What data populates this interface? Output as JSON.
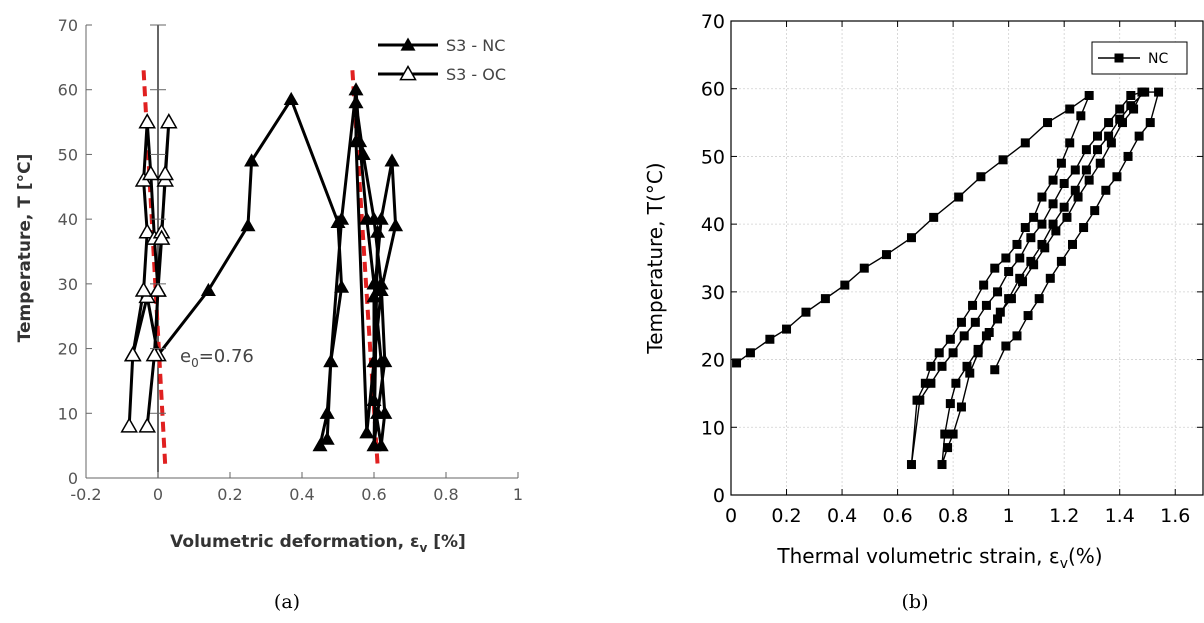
{
  "chart_data": [
    {
      "type": "line",
      "panel_caption": "(a)",
      "xlabel": "Volumetric deformation, ε",
      "xlabel_sub": "v",
      "xlabel_unit": " [%]",
      "ylabel": "Temperature, T [°C]",
      "xlim": [
        -0.2,
        1.0
      ],
      "ylim": [
        0,
        70
      ],
      "xticks": [
        -0.2,
        0,
        0.2,
        0.4,
        0.6,
        0.8,
        1
      ],
      "xtick_labels": [
        "-0.2",
        "0",
        "0.2",
        "0.4",
        "0.6",
        "0.8",
        "1"
      ],
      "yticks": [
        0,
        10,
        20,
        30,
        40,
        50,
        60,
        70
      ],
      "ytick_labels": [
        "0",
        "10",
        "20",
        "30",
        "40",
        "50",
        "60",
        "70"
      ],
      "legend_position": "top-right",
      "annotation": {
        "text": "e",
        "sub": "0",
        "rest": "=0.76"
      },
      "series": [
        {
          "name": "S3 - NC",
          "marker": "filled-triangle",
          "color": "#000000",
          "x": [
            0.0,
            0.14,
            0.25,
            0.26,
            0.37,
            0.5,
            0.51,
            0.48,
            0.47,
            0.45,
            0.47,
            0.48,
            0.51,
            0.55,
            0.56,
            0.58,
            0.6,
            0.62,
            0.63,
            0.62,
            0.6,
            0.6,
            0.62,
            0.65,
            0.66,
            0.62,
            0.6,
            0.58,
            0.55,
            0.55,
            0.57,
            0.6,
            0.62,
            0.63,
            0.61,
            0.6,
            0.61
          ],
          "y": [
            19,
            29,
            39,
            49,
            58.5,
            39.5,
            29.5,
            18,
            10,
            5,
            6,
            18,
            40,
            60,
            52,
            40,
            30,
            18,
            10,
            5,
            12,
            28,
            40,
            49,
            39,
            29,
            18,
            7,
            52,
            58,
            50,
            40,
            30,
            18,
            10,
            5,
            38
          ]
        },
        {
          "name": "S3 - OC",
          "marker": "open-triangle",
          "color": "#000000",
          "x": [
            0.0,
            -0.03,
            -0.07,
            -0.08,
            -0.07,
            -0.04,
            -0.03,
            -0.04,
            -0.03,
            -0.02,
            -0.01,
            0.0,
            0.01,
            0.02,
            0.03,
            0.02,
            0.01,
            0.0,
            -0.01,
            -0.03
          ],
          "y": [
            19,
            28,
            19,
            8,
            19,
            29,
            38,
            46,
            55,
            47,
            37,
            29,
            38,
            46,
            55,
            47,
            37,
            29,
            19,
            8
          ]
        }
      ],
      "reference_lines": [
        {
          "color": "#e02020",
          "style": "dashed",
          "x": [
            -0.04,
            0.02
          ],
          "y": [
            63,
            2
          ]
        },
        {
          "color": "#e02020",
          "style": "dashed",
          "x": [
            0.54,
            0.61
          ],
          "y": [
            63,
            2
          ]
        }
      ]
    },
    {
      "type": "line",
      "panel_caption": "(b)",
      "xlabel": "Thermal volumetric strain, ε",
      "xlabel_sub": "v",
      "xlabel_unit": "(%)",
      "ylabel": "Temperature, T(°C)",
      "xlim": [
        0,
        1.7
      ],
      "ylim": [
        0,
        70
      ],
      "xticks": [
        0,
        0.2,
        0.4,
        0.6,
        0.8,
        1,
        1.2,
        1.4,
        1.6
      ],
      "xtick_labels": [
        "0",
        "0.2",
        "0.4",
        "0.6",
        "0.8",
        "1",
        "1.2",
        "1.4",
        "1.6"
      ],
      "yticks": [
        0,
        10,
        20,
        30,
        40,
        50,
        60,
        70
      ],
      "ytick_labels": [
        "0",
        "10",
        "20",
        "30",
        "40",
        "50",
        "60",
        "70"
      ],
      "grid": true,
      "legend_position": "top-right",
      "series": [
        {
          "name": "NC",
          "marker": "filled-square",
          "color": "#000000",
          "x": [
            0.02,
            0.07,
            0.14,
            0.2,
            0.27,
            0.34,
            0.41,
            0.48,
            0.56,
            0.65,
            0.73,
            0.82,
            0.9,
            0.98,
            1.06,
            1.14,
            1.22,
            1.29,
            1.26,
            1.22,
            1.19,
            1.16,
            1.12,
            1.09,
            1.06,
            1.03,
            0.99,
            0.95,
            0.91,
            0.87,
            0.83,
            0.79,
            0.75,
            0.72,
            0.7,
            0.67,
            0.65,
            0.68,
            0.72,
            0.76,
            0.8,
            0.84,
            0.88,
            0.92,
            0.96,
            1.0,
            1.04,
            1.08,
            1.12,
            1.16,
            1.2,
            1.24,
            1.28,
            1.32,
            1.36,
            1.4,
            1.44,
            1.48,
            1.45,
            1.41,
            1.37,
            1.33,
            1.29,
            1.25,
            1.21,
            1.17,
            1.13,
            1.09,
            1.05,
            1.01,
            0.97,
            0.93,
            0.89,
            0.85,
            0.81,
            0.79,
            0.77,
            0.76,
            0.78,
            0.8,
            0.83,
            0.86,
            0.89,
            0.92,
            0.96,
            1.0,
            1.04,
            1.08,
            1.12,
            1.16,
            1.2,
            1.24,
            1.28,
            1.32,
            1.36,
            1.4,
            1.44,
            1.49,
            1.54,
            1.51,
            1.47,
            1.43,
            1.39,
            1.35,
            1.31,
            1.27,
            1.23,
            1.19,
            1.15,
            1.11,
            1.07,
            1.03,
            0.99,
            0.95
          ],
          "y": [
            19.5,
            21,
            23,
            24.5,
            27,
            29,
            31,
            33.5,
            35.5,
            38,
            41,
            44,
            47,
            49.5,
            52,
            55,
            57,
            59,
            56,
            52,
            49,
            46.5,
            44,
            41,
            39.5,
            37,
            35,
            33.5,
            31,
            28,
            25.5,
            23,
            21,
            19,
            16.5,
            14,
            4.5,
            14,
            16.5,
            19,
            21,
            23.5,
            25.5,
            28,
            30,
            33,
            35,
            38,
            40,
            43,
            46,
            48,
            51,
            53,
            55,
            57,
            59,
            59.5,
            57,
            55,
            52,
            49,
            46.5,
            44,
            41,
            39,
            36.5,
            34,
            31.5,
            29,
            27,
            24,
            21.5,
            19,
            16.5,
            13.5,
            9,
            4.5,
            7,
            9,
            13,
            18,
            21,
            23.5,
            26,
            29,
            32,
            34.5,
            37,
            40,
            42.5,
            45,
            48,
            51,
            53,
            55.5,
            57.5,
            59.5,
            59.5,
            55,
            53,
            50,
            47,
            45,
            42,
            39.5,
            37,
            34.5,
            32,
            29,
            26.5,
            23.5,
            22,
            18.5
          ]
        }
      ]
    }
  ]
}
